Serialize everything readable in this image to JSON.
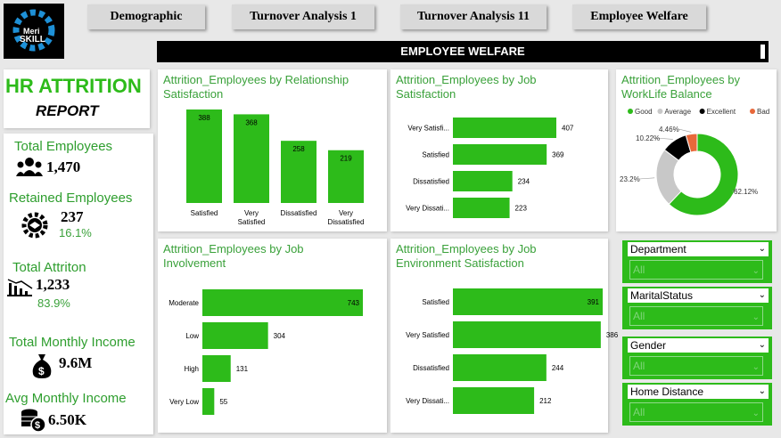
{
  "logo": {
    "line1": "Meri",
    "line2": "SKILL"
  },
  "nav": {
    "demographic": "Demographic",
    "turnover1": "Turnover Analysis 1",
    "turnover11": "Turnover Analysis 11",
    "welfare": "Employee Welfare"
  },
  "page_title": "EMPLOYEE WELFARE",
  "report": {
    "title": "HR ATTRITION",
    "subtitle": "REPORT"
  },
  "kpis": {
    "total_employees": {
      "label": "Total Employees",
      "value": "1,470"
    },
    "retained": {
      "label": "Retained Employees",
      "value": "237",
      "pct": "16.1%"
    },
    "attrition": {
      "label": "Total Attriton",
      "value": "1,233",
      "pct": "83.9%"
    },
    "monthly_income": {
      "label": "Total Monthly Income",
      "value": "9.6M"
    },
    "avg_income": {
      "label": "Avg Monthly Income",
      "value": "6.50K"
    }
  },
  "colors": {
    "bar": "#2dbb1a",
    "good": "#2dbb1a",
    "average": "#c8c8c8",
    "excellent": "#000000",
    "bad": "#e8683a"
  },
  "chart_data": [
    {
      "type": "bar",
      "title": "Attrition_Employees by Relationship Satisfaction",
      "categories": [
        "Satisfied",
        "Very Satisfied",
        "Dissatisfied",
        "Very Dissatisfied"
      ],
      "values": [
        388,
        368,
        258,
        219
      ]
    },
    {
      "type": "bar",
      "orientation": "horizontal",
      "title": "Attrition_Employees by Job Satisfaction",
      "categories": [
        "Very Satisfi...",
        "Satisfied",
        "Dissatisfied",
        "Very Dissati..."
      ],
      "values": [
        407,
        369,
        234,
        223
      ]
    },
    {
      "type": "pie",
      "title": "Attrition_Employees by WorkLife Balance",
      "legend": [
        "Good",
        "Average",
        "Excellent",
        "Bad"
      ],
      "values": [
        62.12,
        23.2,
        10.22,
        4.46
      ],
      "labels": [
        "62.12%",
        "23.2%",
        "10.22%",
        "4.46%"
      ]
    },
    {
      "type": "bar",
      "orientation": "horizontal",
      "title": "Attrition_Employees by Job Involvement",
      "categories": [
        "Moderate",
        "Low",
        "High",
        "Very Low"
      ],
      "values": [
        743,
        304,
        131,
        55
      ]
    },
    {
      "type": "bar",
      "orientation": "horizontal",
      "title": "Attrition_Employees by Job Environment Satisfaction",
      "categories": [
        "Satisfied",
        "Very Satisfied",
        "Dissatisfied",
        "Very Dissati..."
      ],
      "values": [
        391,
        386,
        244,
        212
      ]
    }
  ],
  "slicers": [
    {
      "label": "Department",
      "value": "All"
    },
    {
      "label": "MaritalStatus",
      "value": "All"
    },
    {
      "label": "Gender",
      "value": "All"
    },
    {
      "label": "Home Distance",
      "value": "All"
    }
  ]
}
